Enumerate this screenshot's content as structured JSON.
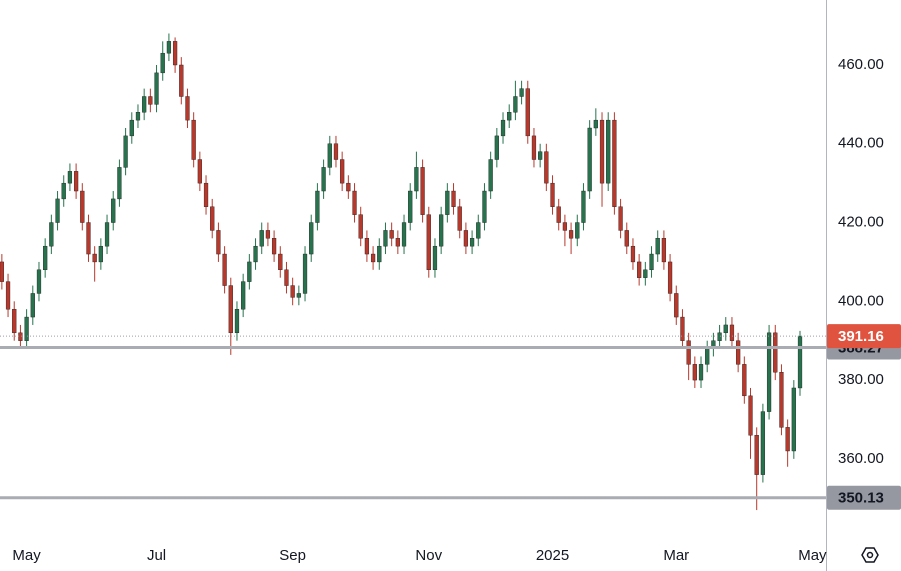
{
  "chart_data": {
    "type": "candlestick",
    "up_color": "#26734d",
    "down_color": "#b8382c",
    "xlim": [
      -0.3,
      133.2
    ],
    "ylim": [
      339.4,
      476.5
    ],
    "xticks": [
      {
        "value": 4,
        "label": "May"
      },
      {
        "value": 25,
        "label": "Jul"
      },
      {
        "value": 47,
        "label": "Sep"
      },
      {
        "value": 69,
        "label": "Nov"
      },
      {
        "value": 89,
        "label": "2025"
      },
      {
        "value": 109,
        "label": "Mar"
      },
      {
        "value": 131,
        "label": "May"
      }
    ],
    "yticks": [
      {
        "value": 360,
        "label": "360.00"
      },
      {
        "value": 380,
        "label": "380.00"
      },
      {
        "value": 400,
        "label": "400.00"
      },
      {
        "value": 420,
        "label": "420.00"
      },
      {
        "value": 440,
        "label": "440.00"
      },
      {
        "value": 460,
        "label": "460.00"
      }
    ],
    "levels": [
      388.27,
      350.13
    ],
    "open": [
      410,
      405,
      398,
      392,
      390,
      396,
      402,
      408,
      414,
      420,
      426,
      430,
      433,
      428,
      420,
      412,
      410,
      414,
      420,
      426,
      434,
      442,
      446,
      448,
      452,
      450,
      458,
      463,
      466,
      460,
      452,
      446,
      436,
      430,
      424,
      418,
      412,
      404,
      392,
      398,
      405,
      410,
      414,
      418,
      416,
      412,
      408,
      404,
      401,
      402,
      412,
      420,
      428,
      434,
      440,
      436,
      430,
      428,
      422,
      416,
      412,
      410,
      414,
      418,
      416,
      414,
      420,
      428,
      434,
      422,
      408,
      414,
      422,
      428,
      424,
      418,
      414,
      416,
      420,
      428,
      436,
      442,
      446,
      448,
      452,
      454,
      442,
      436,
      438,
      430,
      424,
      420,
      418,
      416,
      420,
      428,
      444,
      446,
      430,
      446,
      424,
      418,
      414,
      410,
      406,
      408,
      412,
      416,
      410,
      402,
      396,
      390,
      384,
      380,
      384,
      388,
      390,
      392,
      394,
      390,
      384,
      376,
      366,
      356,
      372,
      392,
      382,
      368,
      362,
      378
    ],
    "high": [
      412,
      407,
      400,
      394,
      398,
      404,
      410,
      416,
      422,
      428,
      432,
      435,
      435,
      430,
      422,
      414,
      416,
      422,
      428,
      436,
      444,
      448,
      450,
      454,
      454,
      460,
      466,
      468,
      467,
      462,
      454,
      448,
      438,
      432,
      426,
      420,
      414,
      406,
      400,
      407,
      412,
      416,
      420,
      420,
      418,
      414,
      410,
      406,
      404,
      414,
      422,
      430,
      436,
      442,
      442,
      438,
      432,
      430,
      424,
      418,
      414,
      416,
      420,
      420,
      418,
      422,
      430,
      438,
      436,
      424,
      416,
      424,
      430,
      430,
      426,
      420,
      418,
      422,
      430,
      438,
      444,
      448,
      450,
      456,
      456,
      456,
      444,
      440,
      440,
      432,
      426,
      422,
      420,
      422,
      430,
      446,
      449,
      448,
      448,
      448,
      426,
      420,
      416,
      412,
      410,
      414,
      418,
      418,
      412,
      404,
      398,
      392,
      386,
      386,
      390,
      392,
      394,
      396,
      396,
      392,
      386,
      378,
      368,
      374,
      394,
      394,
      384,
      370,
      380,
      392.5
    ],
    "low": [
      403,
      396,
      390,
      388,
      388,
      394,
      400,
      406,
      412,
      418,
      424,
      428,
      426,
      418,
      410,
      405,
      408,
      412,
      418,
      424,
      432,
      440,
      444,
      446,
      448,
      448,
      456,
      461,
      458,
      450,
      444,
      434,
      428,
      422,
      416,
      410,
      402,
      386.4,
      390,
      396,
      403,
      408,
      412,
      414,
      410,
      406,
      402,
      399,
      399,
      400,
      410,
      418,
      426,
      432,
      434,
      428,
      426,
      420,
      414,
      410,
      408,
      408,
      412,
      414,
      412,
      412,
      418,
      426,
      420,
      406,
      406,
      412,
      420,
      422,
      416,
      412,
      412,
      414,
      418,
      426,
      434,
      440,
      444,
      446,
      450,
      440,
      434,
      434,
      428,
      422,
      418,
      414,
      412,
      414,
      418,
      426,
      442,
      424,
      428,
      422,
      416,
      412,
      408,
      404,
      404,
      406,
      410,
      408,
      400,
      394,
      388,
      380,
      378,
      378,
      382,
      386,
      388,
      390,
      388,
      382,
      374,
      360,
      347,
      354,
      370,
      380,
      366,
      358,
      360,
      376
    ],
    "close": [
      405,
      398,
      392,
      390,
      396,
      402,
      408,
      414,
      420,
      426,
      430,
      433,
      428,
      420,
      412,
      410,
      414,
      420,
      426,
      434,
      442,
      446,
      448,
      452,
      450,
      458,
      463,
      466,
      460,
      452,
      446,
      436,
      430,
      424,
      418,
      412,
      404,
      392,
      398,
      405,
      410,
      414,
      418,
      416,
      412,
      408,
      404,
      401,
      402,
      412,
      420,
      428,
      434,
      440,
      436,
      430,
      428,
      422,
      416,
      412,
      410,
      414,
      418,
      416,
      414,
      420,
      428,
      434,
      422,
      408,
      414,
      422,
      428,
      424,
      418,
      414,
      416,
      420,
      428,
      436,
      442,
      446,
      448,
      452,
      454,
      442,
      436,
      438,
      430,
      424,
      420,
      418,
      416,
      420,
      428,
      444,
      446,
      430,
      446,
      424,
      418,
      414,
      410,
      406,
      408,
      412,
      416,
      410,
      402,
      396,
      390,
      384,
      380,
      384,
      388,
      390,
      392,
      394,
      390,
      384,
      376,
      366,
      356,
      372,
      392,
      382,
      368,
      362,
      378,
      391.16
    ]
  }
}
